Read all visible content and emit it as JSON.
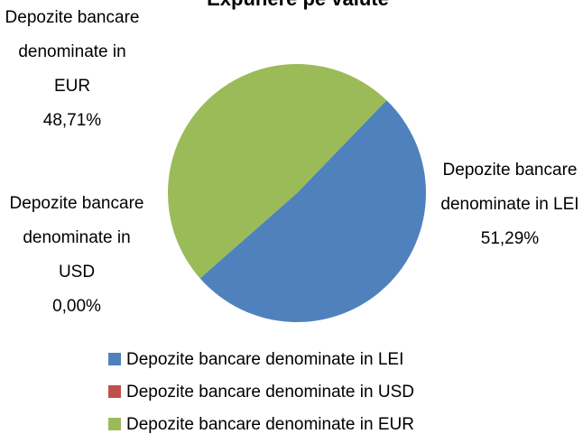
{
  "chart_data": {
    "type": "pie",
    "title": "Expunere pe valute",
    "categories": [
      "Depozite bancare denominate in LEI",
      "Depozite bancare denominate in USD",
      "Depozite bancare denominate in EUR"
    ],
    "values": [
      51.29,
      0,
      48.71
    ],
    "value_labels": [
      "51,29%",
      "0,00%",
      "48,71%"
    ],
    "colors": [
      "#4f81bd",
      "#c0504d",
      "#9bbb59"
    ],
    "legend": "bottom"
  }
}
